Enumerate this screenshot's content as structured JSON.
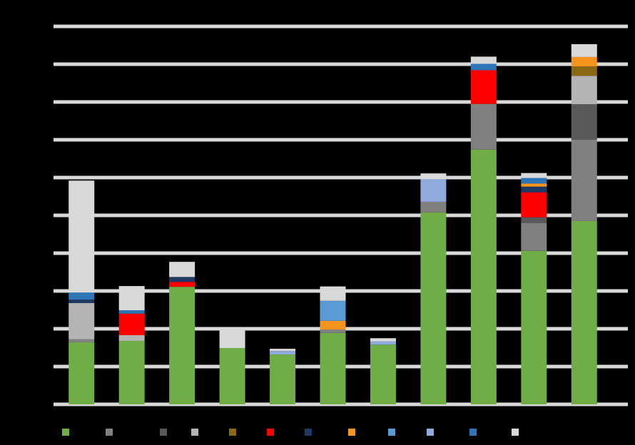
{
  "chart_data": {
    "type": "stacked_bar",
    "categories": [
      null,
      null,
      null,
      null,
      null,
      null,
      null,
      null,
      null,
      null,
      null
    ],
    "ylim": [
      0,
      100
    ],
    "yticks": [
      0,
      10,
      20,
      30,
      40,
      50,
      60,
      70,
      80,
      90,
      100
    ],
    "grid": true,
    "series": [
      {
        "color": "#70ad47",
        "values": [
          16.4,
          16.8,
          31.1,
          14.9,
          13.2,
          18.9,
          15.8,
          50.8,
          67.4,
          40.6,
          48.5
        ]
      },
      {
        "color": "#808080",
        "values": [
          0.8,
          0,
          0,
          0,
          0,
          0.9,
          0,
          2.8,
          12.1,
          7.4,
          21.5
        ]
      },
      {
        "color": "#595959",
        "values": [
          0,
          0,
          0,
          0,
          0,
          0,
          0,
          0,
          0,
          1.5,
          9.4
        ]
      },
      {
        "color": "#b4b4b4",
        "values": [
          9.6,
          1.5,
          0,
          0,
          0,
          0,
          0,
          0,
          0,
          0,
          7.5
        ]
      },
      {
        "color": "#8b6914",
        "values": [
          0,
          0,
          0,
          0,
          0,
          0,
          0,
          0,
          0,
          0,
          2.5
        ]
      },
      {
        "color": "#ff0000",
        "values": [
          0,
          5.7,
          1.3,
          0,
          0,
          0,
          0,
          0,
          8.9,
          6.6,
          0
        ]
      },
      {
        "color": "#203864",
        "values": [
          0.9,
          0,
          1.3,
          0,
          0,
          0,
          0,
          0,
          0,
          1.5,
          0
        ]
      },
      {
        "color": "#f7941d",
        "values": [
          0,
          0,
          0,
          0,
          0,
          2.3,
          0,
          0,
          0,
          0.8,
          2.5
        ]
      },
      {
        "color": "#5b9bd5",
        "values": [
          0,
          0,
          0,
          0,
          0,
          5.3,
          0,
          0,
          0,
          0,
          0
        ]
      },
      {
        "color": "#8faadc",
        "values": [
          0,
          0,
          0,
          0,
          0.9,
          0,
          0.9,
          6,
          0,
          0,
          0
        ]
      },
      {
        "color": "#2e75b6",
        "values": [
          1.9,
          0.9,
          0,
          0,
          0,
          0,
          0,
          0,
          1.7,
          1.5,
          0
        ]
      },
      {
        "color": "#d9d9d9",
        "values": [
          29.6,
          6.4,
          4,
          5.1,
          0.6,
          3.8,
          0.8,
          1.5,
          1.9,
          1.3,
          3.4
        ]
      }
    ]
  }
}
